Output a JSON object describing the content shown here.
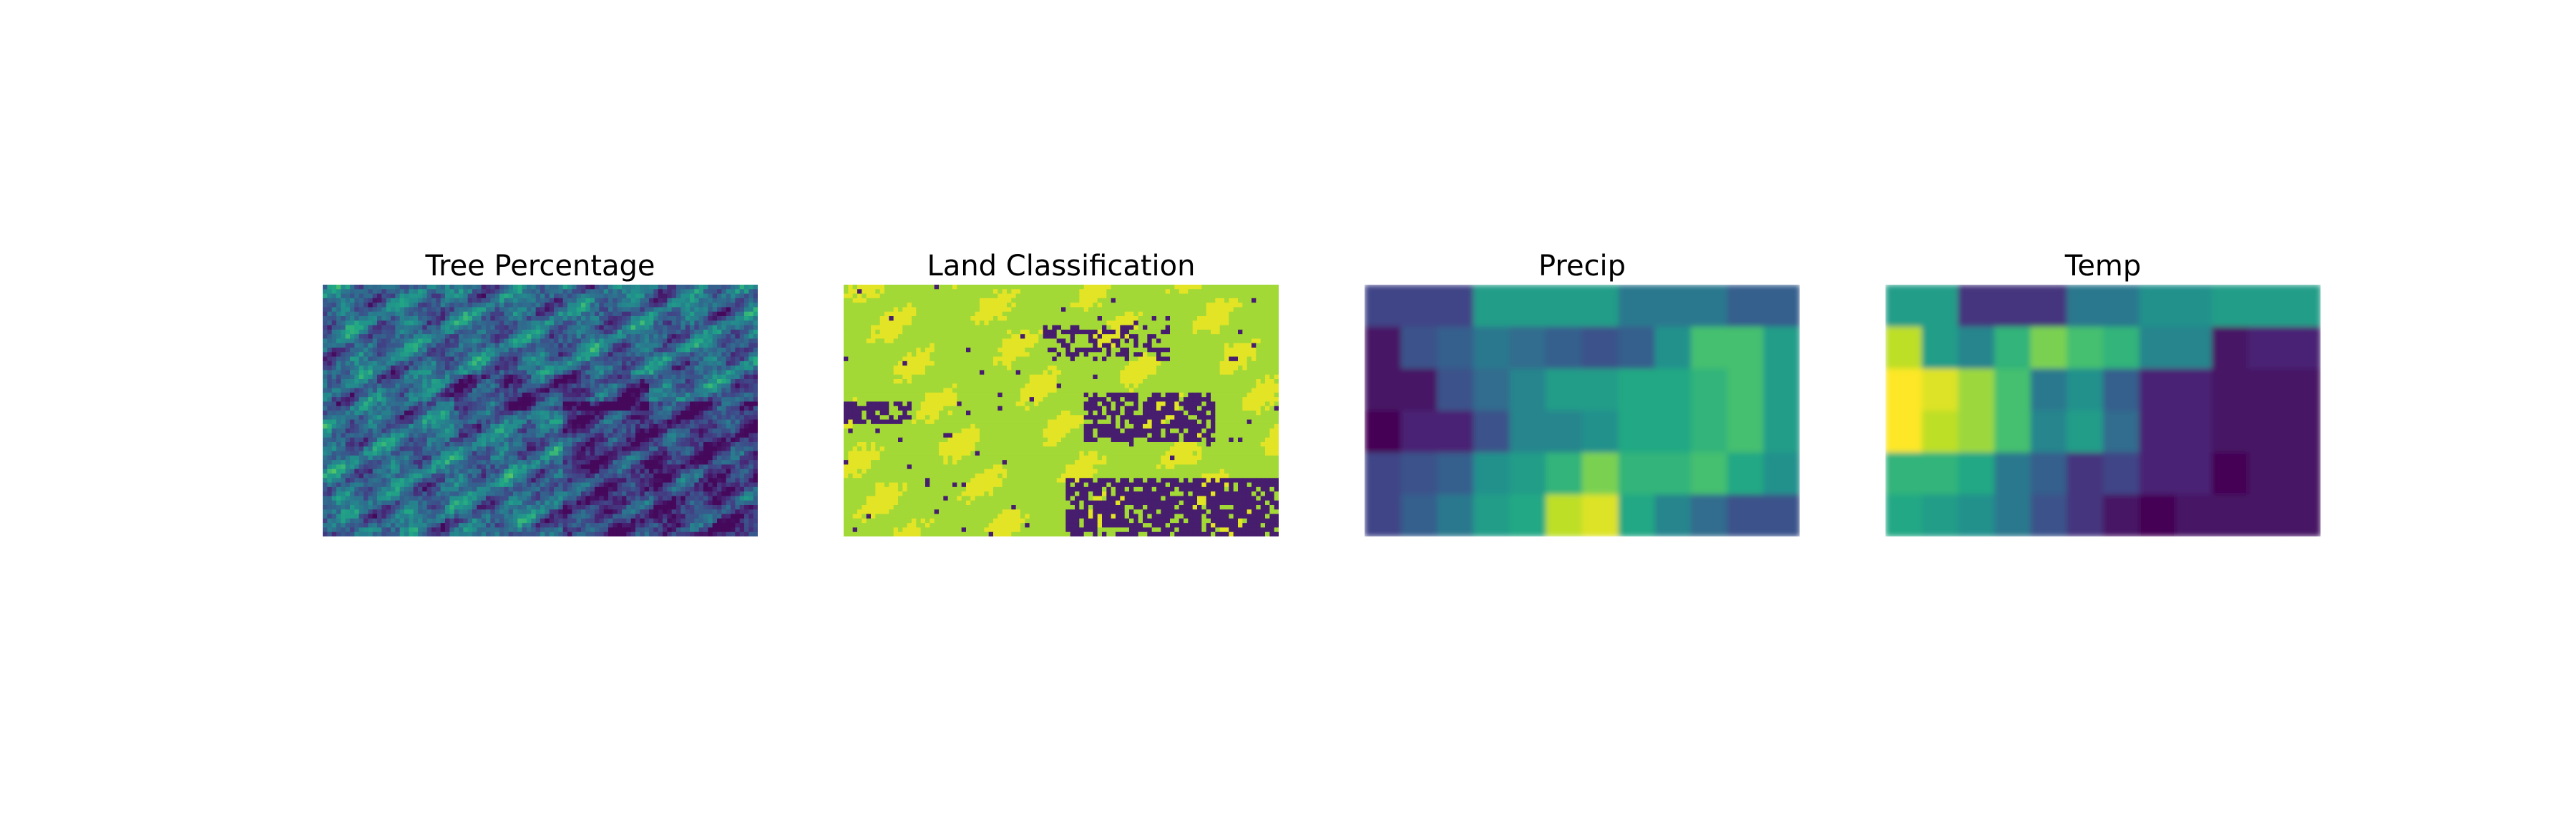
{
  "figure": {
    "panels": [
      "Tree Percentage",
      "Land Classification",
      "Precip",
      "Temp"
    ]
  },
  "chart_data": [
    {
      "type": "heatmap",
      "title": "Tree Percentage",
      "colormap": "viridis",
      "axes": "off",
      "description_values_range": [
        0,
        1
      ],
      "grid": false
    },
    {
      "type": "heatmap",
      "title": "Land Classification",
      "colormap": "viridis",
      "axes": "off",
      "classes": 3,
      "grid": false
    },
    {
      "type": "heatmap",
      "title": "Precip",
      "colormap": "viridis",
      "axes": "off",
      "grid": false,
      "values": [
        [
          0.2,
          0.2,
          0.2,
          0.55,
          0.55,
          0.55,
          0.55,
          0.4,
          0.4,
          0.4,
          0.3,
          0.3
        ],
        [
          0.05,
          0.25,
          0.3,
          0.4,
          0.35,
          0.3,
          0.25,
          0.3,
          0.5,
          0.7,
          0.7,
          0.55
        ],
        [
          0.05,
          0.05,
          0.25,
          0.35,
          0.45,
          0.55,
          0.55,
          0.6,
          0.6,
          0.65,
          0.7,
          0.55
        ],
        [
          0.0,
          0.1,
          0.1,
          0.25,
          0.45,
          0.45,
          0.5,
          0.6,
          0.6,
          0.65,
          0.7,
          0.55
        ],
        [
          0.2,
          0.25,
          0.3,
          0.5,
          0.55,
          0.65,
          0.8,
          0.65,
          0.65,
          0.7,
          0.6,
          0.5
        ],
        [
          0.2,
          0.3,
          0.4,
          0.55,
          0.6,
          0.9,
          0.95,
          0.6,
          0.45,
          0.35,
          0.25,
          0.25
        ]
      ]
    },
    {
      "type": "heatmap",
      "title": "Temp",
      "colormap": "viridis",
      "axes": "off",
      "grid": false,
      "values": [
        [
          0.55,
          0.55,
          0.15,
          0.15,
          0.15,
          0.4,
          0.4,
          0.5,
          0.5,
          0.55,
          0.55,
          0.55
        ],
        [
          0.9,
          0.55,
          0.45,
          0.65,
          0.8,
          0.7,
          0.65,
          0.45,
          0.45,
          0.05,
          0.1,
          0.1
        ],
        [
          1.0,
          0.95,
          0.85,
          0.7,
          0.4,
          0.5,
          0.3,
          0.1,
          0.1,
          0.05,
          0.05,
          0.05
        ],
        [
          1.0,
          0.9,
          0.85,
          0.7,
          0.45,
          0.55,
          0.35,
          0.1,
          0.1,
          0.05,
          0.05,
          0.05
        ],
        [
          0.65,
          0.65,
          0.6,
          0.4,
          0.3,
          0.15,
          0.2,
          0.1,
          0.1,
          0.0,
          0.05,
          0.05
        ],
        [
          0.6,
          0.55,
          0.5,
          0.4,
          0.25,
          0.15,
          0.05,
          0.0,
          0.05,
          0.05,
          0.05,
          0.05
        ]
      ]
    }
  ]
}
